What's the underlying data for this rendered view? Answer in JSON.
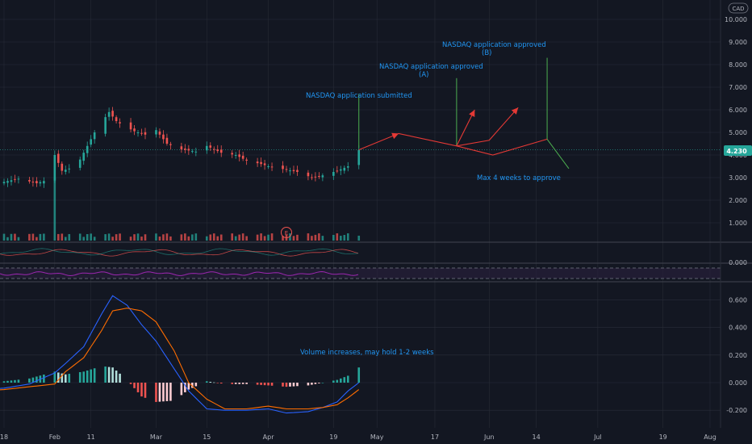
{
  "currency_badge": "CAD",
  "price_badge": "4.230",
  "colors": {
    "background": "#131722",
    "up": "#26a69a",
    "down": "#ef5350",
    "annotation": "#2196f3",
    "projection": "#e53935",
    "grid": "#2a2e39",
    "macd_line": "#2962ff",
    "signal_line": "#ff6d00",
    "rsi_line": "#9c27b0"
  },
  "x_tick_labels": [
    "18",
    "Feb",
    "11",
    "Mar",
    "15",
    "Apr",
    "19",
    "May",
    "17",
    "Jun",
    "14",
    "Jul",
    "19",
    "Aug"
  ],
  "annotations": {
    "submitted": "NASDAQ application submitted",
    "approved_a": "NASDAQ application approved",
    "label_a": "(A)",
    "approved_b": "NASDAQ application approved",
    "label_b": "(B)",
    "max_weeks": "Max 4 weeks to approve",
    "volume_note": "Volume increases, may hold 1-2 weeks",
    "earnings_marker": "E"
  },
  "chart_data": [
    {
      "type": "candlestick",
      "panel": "price",
      "currency": "CAD",
      "last_price": 4.23,
      "y_ticks": [
        1.0,
        2.0,
        3.0,
        4.0,
        5.0,
        6.0,
        7.0,
        8.0,
        9.0,
        10.0
      ],
      "y_tick_labels": [
        "1.000",
        "2.000",
        "3.000",
        "4.000",
        "5.000",
        "6.000",
        "7.000",
        "8.000",
        "9.000",
        "10.000"
      ],
      "ylim": [
        0.5,
        10.5
      ],
      "close_path": [
        [
          "2021-01-11",
          2.65
        ],
        [
          "2021-01-15",
          2.7
        ],
        [
          "2021-01-19",
          2.85
        ],
        [
          "2021-01-22",
          2.95
        ],
        [
          "2021-01-27",
          2.75
        ],
        [
          "2021-01-29",
          2.85
        ],
        [
          "2021-02-01",
          4.0
        ],
        [
          "2021-02-03",
          3.3
        ],
        [
          "2021-02-05",
          3.4
        ],
        [
          "2021-02-08",
          3.8
        ],
        [
          "2021-02-10",
          4.4
        ],
        [
          "2021-02-12",
          5.0
        ],
        [
          "2021-02-16",
          5.9
        ],
        [
          "2021-02-18",
          5.5
        ],
        [
          "2021-02-20",
          5.3
        ],
        [
          "2021-02-23",
          5.05
        ],
        [
          "2021-02-26",
          4.9
        ],
        [
          "2021-03-01",
          5.1
        ],
        [
          "2021-03-04",
          4.5
        ],
        [
          "2021-03-08",
          4.25
        ],
        [
          "2021-03-12",
          4.15
        ],
        [
          "2021-03-15",
          4.4
        ],
        [
          "2021-03-19",
          4.1
        ],
        [
          "2021-03-23",
          4.0
        ],
        [
          "2021-03-26",
          3.75
        ],
        [
          "2021-03-30",
          3.6
        ],
        [
          "2021-04-01",
          3.5
        ],
        [
          "2021-04-06",
          3.35
        ],
        [
          "2021-04-09",
          3.25
        ],
        [
          "2021-04-13",
          3.0
        ],
        [
          "2021-04-16",
          3.1
        ],
        [
          "2021-04-20",
          3.3
        ],
        [
          "2021-04-23",
          3.5
        ],
        [
          "2021-04-26",
          4.23
        ]
      ],
      "projection": [
        [
          "2021-04-26",
          4.23
        ],
        [
          "2021-05-07",
          4.95
        ],
        [
          "2021-05-23",
          4.4
        ],
        [
          "2021-06-01",
          4.65
        ],
        [
          "2021-06-09",
          6.1
        ]
      ],
      "projection_alt": [
        [
          "2021-05-23",
          4.4
        ],
        [
          "2021-06-02",
          4.0
        ],
        [
          "2021-06-17",
          4.7
        ]
      ],
      "projection_branch_a": [
        [
          "2021-05-23",
          4.4
        ],
        [
          "2021-05-28",
          6.0
        ]
      ],
      "vertical_markers": [
        {
          "date": "2021-04-26",
          "from": 4.3,
          "to": 6.7
        },
        {
          "date": "2021-05-23",
          "from": 4.4,
          "to": 7.4
        },
        {
          "date": "2021-06-17",
          "from": 4.7,
          "to": 8.3
        }
      ],
      "max_weeks_pointer": {
        "from": [
          "2021-06-17",
          4.7
        ],
        "to": [
          "2021-06-23",
          3.4
        ]
      },
      "earnings_marker_date": "2021-04-09"
    },
    {
      "type": "bar",
      "panel": "volume",
      "description_series": "Volume histogram",
      "spike_date": "2021-02-01",
      "level": "low-constant"
    },
    {
      "type": "line",
      "panel": "oscillators",
      "series": [
        {
          "name": "",
          "color": "#ef5350"
        },
        {
          "name": "",
          "color": "#26a69a"
        }
      ],
      "y_tick_labels": [
        "0.000"
      ]
    },
    {
      "type": "line",
      "panel": "rsi",
      "bands": "dashed upper and lower",
      "series": [
        {
          "name": "",
          "color": "#9c27b0"
        }
      ]
    },
    {
      "type": "histogram",
      "panel": "macd",
      "y_ticks": [
        -0.2,
        0.0,
        0.2,
        0.4,
        0.6
      ],
      "y_tick_labels": [
        "-0.200",
        "0.000",
        "0.200",
        "0.400",
        "0.600"
      ],
      "ylim": [
        -0.32,
        0.73
      ],
      "points": [
        [
          "2021-01-11",
          0.0,
          -0.05,
          -0.06
        ],
        [
          "2021-01-18",
          0.01,
          -0.04,
          -0.05
        ],
        [
          "2021-01-25",
          0.03,
          -0.01,
          -0.03
        ],
        [
          "2021-02-01",
          0.08,
          0.07,
          -0.01
        ],
        [
          "2021-02-04",
          0.06,
          0.14,
          0.08
        ],
        [
          "2021-02-09",
          0.08,
          0.26,
          0.18
        ],
        [
          "2021-02-14",
          0.12,
          0.5,
          0.38
        ],
        [
          "2021-02-17",
          0.11,
          0.63,
          0.52
        ],
        [
          "2021-02-21",
          0.02,
          0.56,
          0.54
        ],
        [
          "2021-02-25",
          -0.1,
          0.42,
          0.52
        ],
        [
          "2021-03-01",
          -0.14,
          0.3,
          0.44
        ],
        [
          "2021-03-06",
          -0.13,
          0.1,
          0.23
        ],
        [
          "2021-03-10",
          -0.05,
          -0.06,
          0.0
        ],
        [
          "2021-03-15",
          0.01,
          -0.19,
          -0.12
        ],
        [
          "2021-03-20",
          -0.01,
          -0.2,
          -0.19
        ],
        [
          "2021-03-26",
          -0.01,
          -0.2,
          -0.19
        ],
        [
          "2021-04-01",
          -0.02,
          -0.19,
          -0.17
        ],
        [
          "2021-04-06",
          -0.03,
          -0.22,
          -0.19
        ],
        [
          "2021-04-12",
          -0.02,
          -0.21,
          -0.19
        ],
        [
          "2021-04-16",
          0.0,
          -0.18,
          -0.18
        ],
        [
          "2021-04-20",
          0.02,
          -0.14,
          -0.16
        ],
        [
          "2021-04-23",
          0.05,
          -0.06,
          -0.11
        ],
        [
          "2021-04-26",
          0.11,
          0.0,
          -0.05
        ]
      ],
      "point_fields": [
        "date",
        "histogram",
        "macd",
        "signal"
      ]
    }
  ]
}
